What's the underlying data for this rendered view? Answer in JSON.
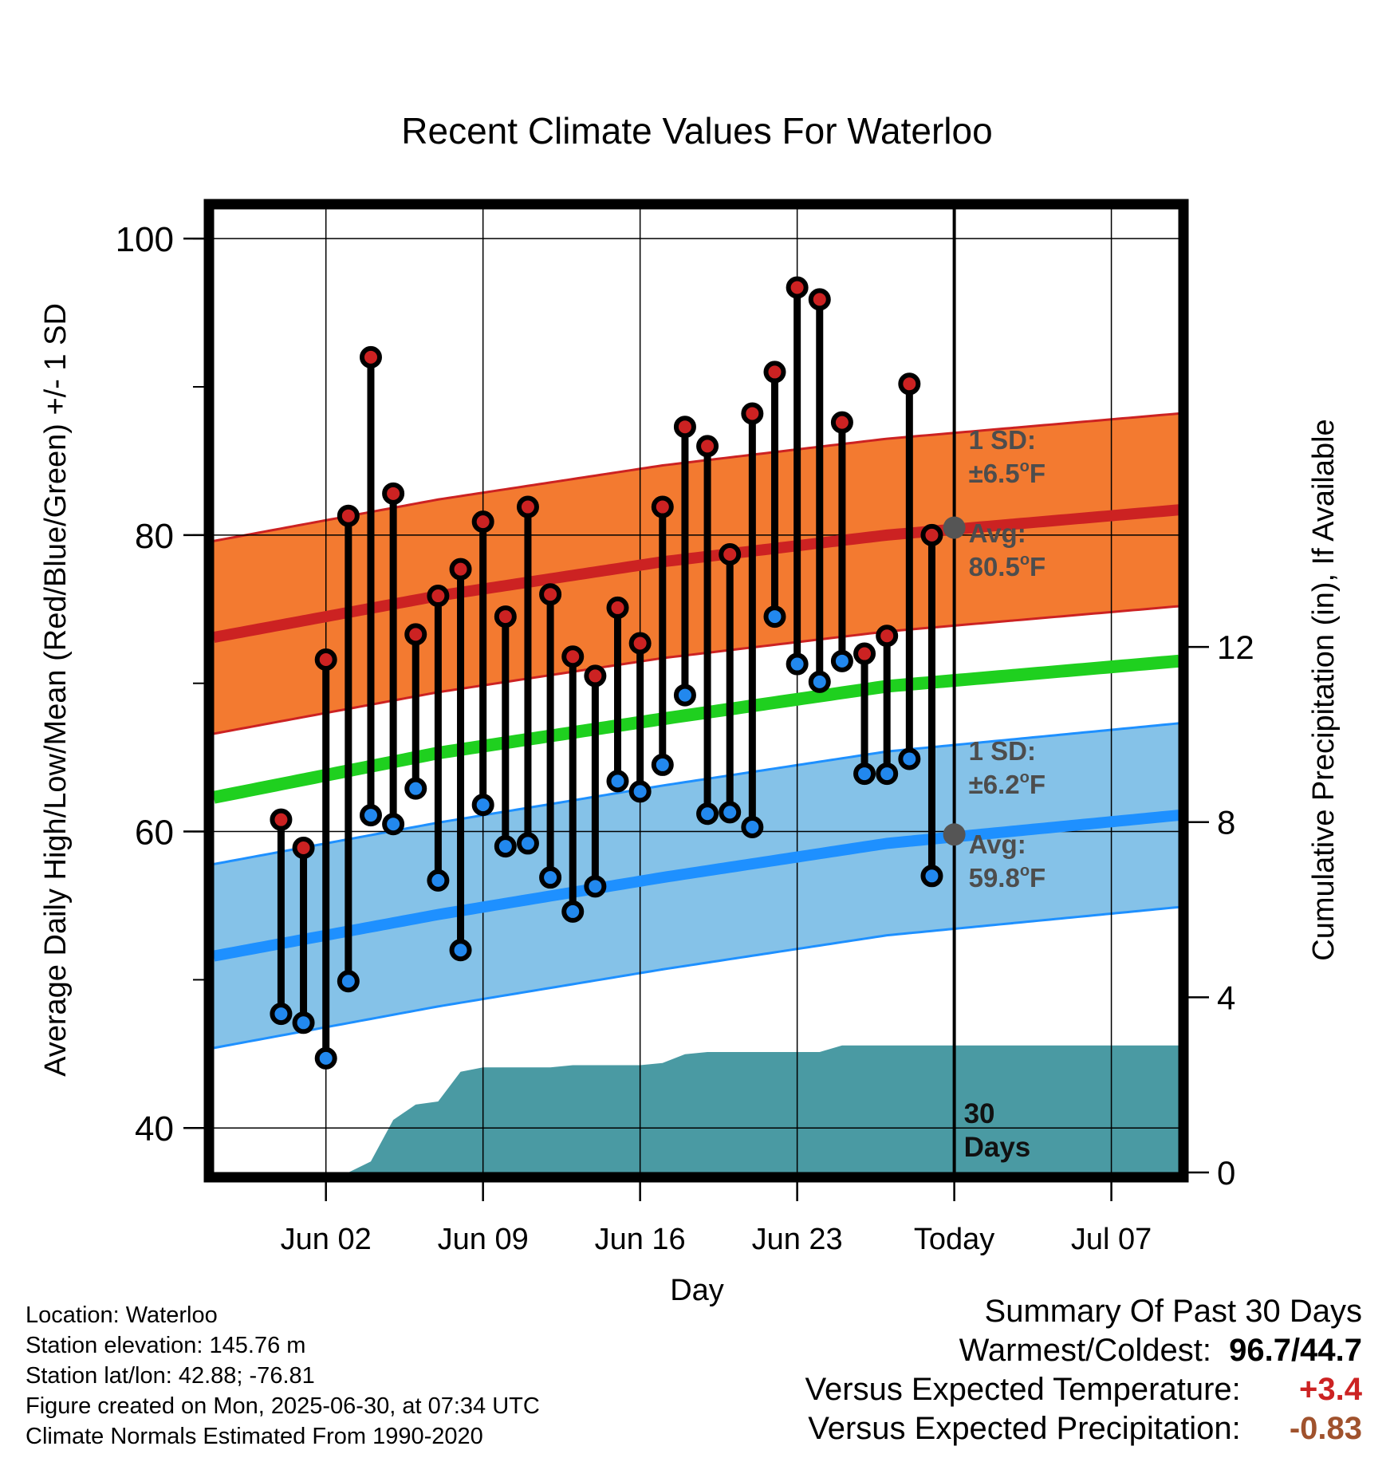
{
  "chart_data": {
    "type": "line",
    "title": "Recent Climate Values For Waterloo",
    "xlabel": "Day",
    "ylabel": "Average Daily High/Low/Mean (Red/Blue/Green) +/- 1 SD",
    "y2label": "Cumulative Precipitation (in), If Available",
    "ylim": [
      37,
      102
    ],
    "y2lim": [
      0,
      22
    ],
    "y_ticks": [
      40,
      60,
      80,
      100
    ],
    "y2_ticks": [
      0,
      4,
      8,
      12
    ],
    "x_range": [
      "2025-05-28",
      "2025-07-10"
    ],
    "x_ticks": [
      {
        "date": "2025-06-02",
        "label": "Jun 02"
      },
      {
        "date": "2025-06-09",
        "label": "Jun 09"
      },
      {
        "date": "2025-06-16",
        "label": "Jun 16"
      },
      {
        "date": "2025-06-23",
        "label": "Jun 23"
      },
      {
        "date": "2025-06-30",
        "label": "Today"
      },
      {
        "date": "2025-07-07",
        "label": "Jul 07"
      }
    ],
    "grid": true,
    "today": "2025-06-30",
    "window_label": [
      "30",
      "Days"
    ],
    "normals": {
      "dates": [
        "2025-05-28",
        "2025-06-07",
        "2025-06-17",
        "2025-06-27",
        "2025-07-10"
      ],
      "high_mean": [
        73.1,
        75.9,
        78.2,
        80.0,
        81.7
      ],
      "high_sd": 6.5,
      "low_mean": [
        51.6,
        54.4,
        56.9,
        59.2,
        61.1
      ],
      "low_sd": 6.2,
      "mean": [
        62.3,
        65.3,
        67.6,
        69.8,
        71.5
      ]
    },
    "annotations": {
      "high_sd": {
        "line1": "1 SD:",
        "line2": "±6.5",
        "unit": "F"
      },
      "high_avg": {
        "line1": "Avg:",
        "line2": "80.5",
        "unit": "F",
        "value": 80.5
      },
      "low_sd": {
        "line1": "1 SD:",
        "line2": "±6.2",
        "unit": "F"
      },
      "low_avg": {
        "line1": "Avg:",
        "line2": "59.8",
        "unit": "F",
        "value": 59.8
      }
    },
    "daily": {
      "dates": [
        "2025-05-31",
        "2025-06-01",
        "2025-06-02",
        "2025-06-03",
        "2025-06-04",
        "2025-06-05",
        "2025-06-06",
        "2025-06-07",
        "2025-06-08",
        "2025-06-09",
        "2025-06-10",
        "2025-06-11",
        "2025-06-12",
        "2025-06-13",
        "2025-06-14",
        "2025-06-15",
        "2025-06-16",
        "2025-06-17",
        "2025-06-18",
        "2025-06-19",
        "2025-06-20",
        "2025-06-21",
        "2025-06-22",
        "2025-06-23",
        "2025-06-24",
        "2025-06-25",
        "2025-06-26",
        "2025-06-27",
        "2025-06-28",
        "2025-06-29"
      ],
      "high": [
        60.8,
        58.9,
        71.6,
        81.3,
        92.0,
        82.8,
        73.3,
        75.9,
        77.7,
        80.9,
        74.5,
        81.9,
        76.0,
        71.8,
        70.5,
        75.1,
        72.7,
        81.9,
        87.3,
        86.0,
        78.7,
        88.2,
        91.0,
        96.7,
        95.9,
        87.6,
        72.0,
        73.2,
        90.2,
        80.0
      ],
      "low": [
        47.7,
        47.1,
        44.7,
        49.9,
        61.1,
        60.5,
        62.9,
        56.7,
        52.0,
        61.8,
        59.0,
        59.2,
        56.9,
        54.6,
        56.3,
        63.4,
        62.7,
        64.5,
        69.2,
        61.2,
        61.3,
        60.3,
        74.5,
        71.3,
        70.1,
        71.5,
        63.9,
        63.9,
        64.9,
        57.0
      ],
      "high_color": "#cc2222",
      "low_color": "#2288ee"
    },
    "precip_cumulative": {
      "dates": [
        "2025-05-28",
        "2025-06-03",
        "2025-06-04",
        "2025-06-05",
        "2025-06-06",
        "2025-06-07",
        "2025-06-08",
        "2025-06-09",
        "2025-06-10",
        "2025-06-11",
        "2025-06-12",
        "2025-06-13",
        "2025-06-14",
        "2025-06-15",
        "2025-06-16",
        "2025-06-17",
        "2025-06-18",
        "2025-06-19",
        "2025-06-20",
        "2025-06-21",
        "2025-06-22",
        "2025-06-23",
        "2025-06-24",
        "2025-06-25",
        "2025-06-26",
        "2025-06-27",
        "2025-06-28",
        "2025-06-29",
        "2025-06-30",
        "2025-07-10"
      ],
      "values": [
        0,
        0,
        0.25,
        1.2,
        1.55,
        1.62,
        2.3,
        2.4,
        2.4,
        2.4,
        2.4,
        2.45,
        2.45,
        2.45,
        2.45,
        2.5,
        2.7,
        2.75,
        2.75,
        2.75,
        2.75,
        2.75,
        2.75,
        2.9,
        2.9,
        2.9,
        2.9,
        2.9,
        2.9,
        2.9
      ],
      "color": "#4a9aa3"
    },
    "colors": {
      "high_band": "#f37a30",
      "high_line": "#cc2222",
      "low_band": "#85c2e8",
      "low_line": "#1e90ff",
      "mean_line": "#1fd01f",
      "avg_marker": "#555555",
      "annotation_text": "#4d4d4d"
    }
  },
  "footer": {
    "location": "Location: Waterloo",
    "elevation": "Station elevation: 145.76 m",
    "latlon": "Station lat/lon: 42.88; -76.81",
    "created": "Figure created on Mon, 2025-06-30, at 07:34 UTC",
    "normals": "Climate Normals Estimated From 1990-2020"
  },
  "summary": {
    "title": "Summary Of Past 30 Days",
    "warm_cold_label": "Warmest/Coldest:",
    "warm_cold_value": "96.7/44.7",
    "temp_label": "Versus Expected Temperature:",
    "temp_value": "+3.4",
    "temp_color": "#cc2222",
    "precip_label": "Versus Expected Precipitation:",
    "precip_value": "-0.83",
    "precip_color": "#a0522d"
  }
}
